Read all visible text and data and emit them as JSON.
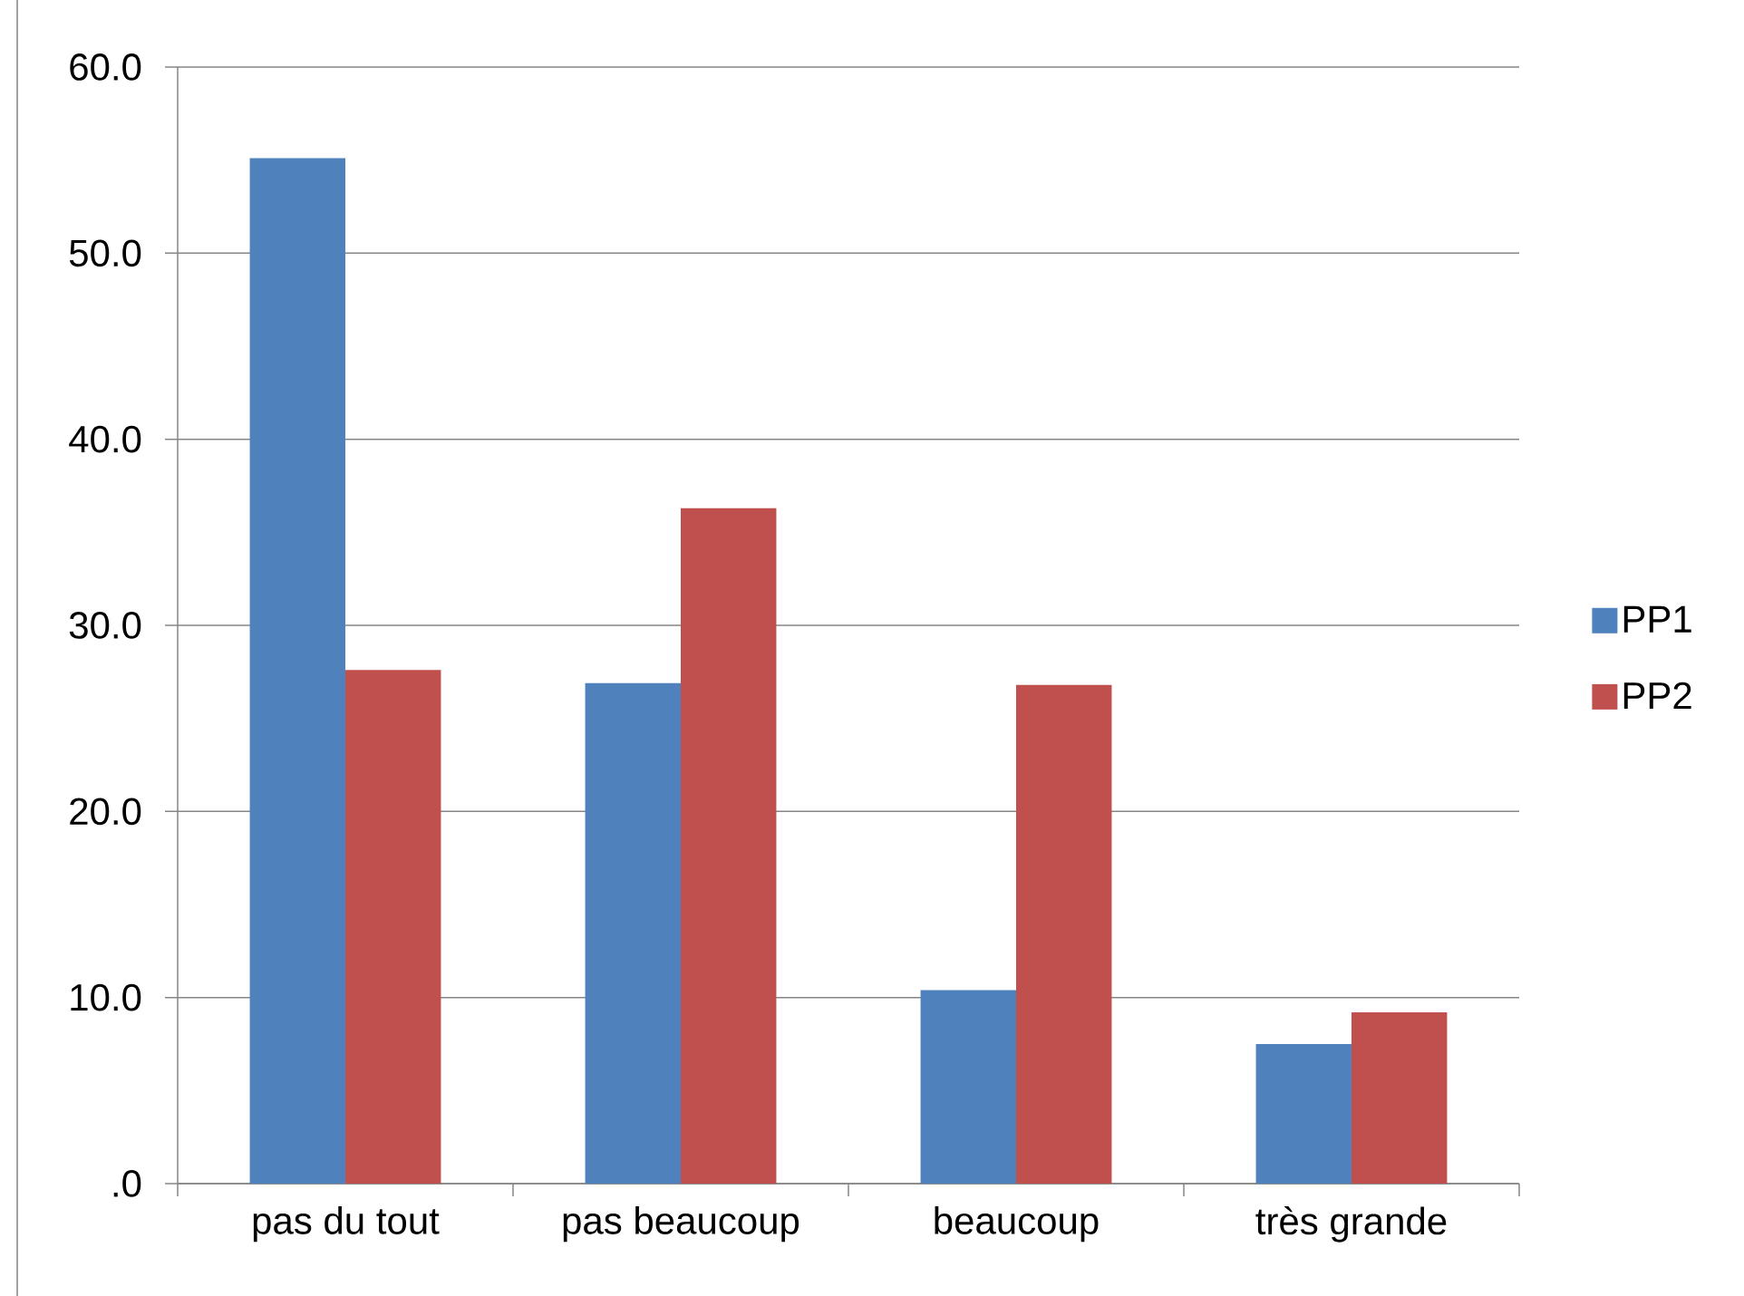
{
  "chart_data": {
    "type": "bar",
    "categories": [
      "pas du tout",
      "pas beaucoup",
      "beaucoup",
      "très grande"
    ],
    "series": [
      {
        "name": "PP1",
        "color": "#4f81bd",
        "values": [
          55.1,
          26.9,
          10.4,
          7.5
        ]
      },
      {
        "name": "PP2",
        "color": "#c0504d",
        "values": [
          27.6,
          36.3,
          26.8,
          9.2
        ]
      }
    ],
    "ylim": [
      0,
      60
    ],
    "yticks": [
      {
        "value": 0,
        "label": ".0"
      },
      {
        "value": 10,
        "label": "10.0"
      },
      {
        "value": 20,
        "label": "20.0"
      },
      {
        "value": 30,
        "label": "30.0"
      },
      {
        "value": 40,
        "label": "40.0"
      },
      {
        "value": 50,
        "label": "50.0"
      },
      {
        "value": 60,
        "label": "60.0"
      }
    ],
    "grid": "y",
    "legend": "right"
  }
}
